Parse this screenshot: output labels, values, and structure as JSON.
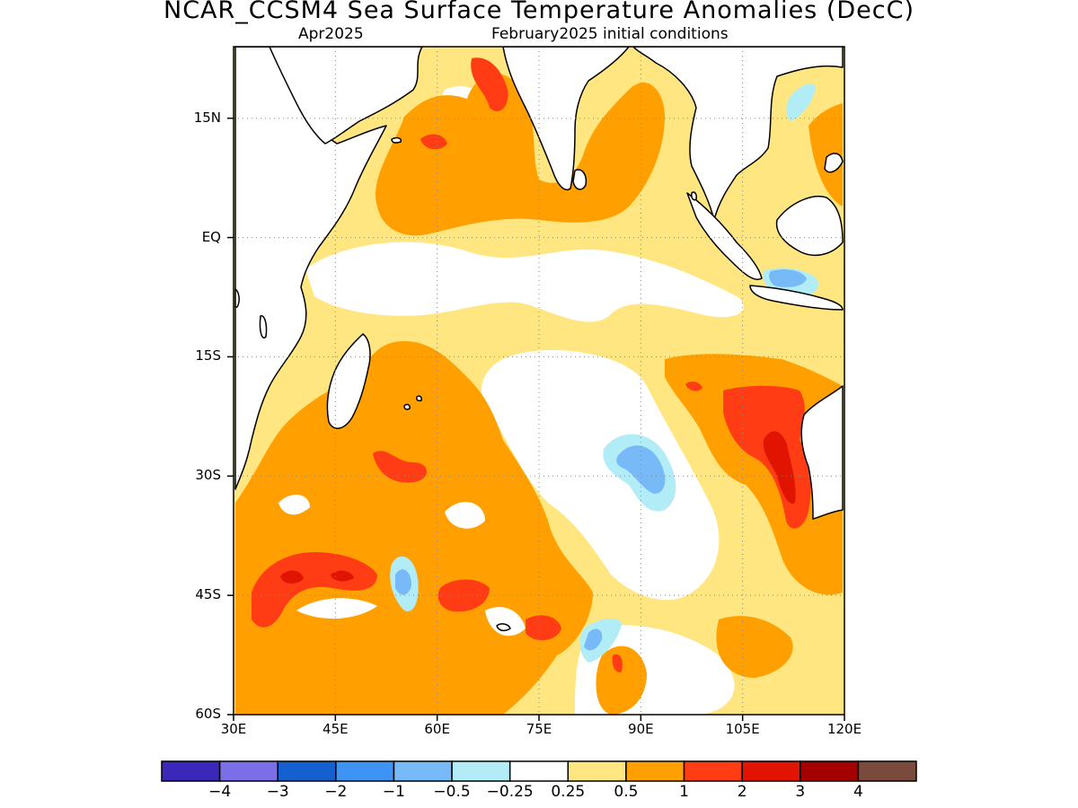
{
  "title": "NCAR_CCSM4 Sea Surface Temperature Anomalies (DecC)",
  "subtitle_left": "Apr2025",
  "subtitle_right": "February2025 initial conditions",
  "map": {
    "lon_range": [
      30,
      120
    ],
    "lat_range": [
      -60,
      24
    ],
    "lat_ticks": [
      {
        "label": "15N",
        "value": 15
      },
      {
        "label": "EQ",
        "value": 0
      },
      {
        "label": "15S",
        "value": -15
      },
      {
        "label": "30S",
        "value": -30
      },
      {
        "label": "45S",
        "value": -45
      },
      {
        "label": "60S",
        "value": -60
      }
    ],
    "lon_ticks": [
      {
        "label": "30E",
        "value": 30
      },
      {
        "label": "45E",
        "value": 45
      },
      {
        "label": "60E",
        "value": 60
      },
      {
        "label": "75E",
        "value": 75
      },
      {
        "label": "90E",
        "value": 90
      },
      {
        "label": "105E",
        "value": 105
      },
      {
        "label": "120E",
        "value": 120
      }
    ],
    "grid": true,
    "land_color": "#ffffff"
  },
  "colorbar": {
    "colors": [
      "#3b27b8",
      "#7b6fe8",
      "#1460cf",
      "#3d94f2",
      "#78b9f7",
      "#b1ecf7",
      "#ffffff",
      "#ffe680",
      "#ffa000",
      "#ff3c14",
      "#e01400",
      "#a50000",
      "#7a4a3c"
    ],
    "labels": [
      "-4",
      "-3",
      "-2",
      "-1",
      "-0.5",
      "-0.25",
      "0.25",
      "0.5",
      "1",
      "2",
      "3",
      "4"
    ]
  }
}
